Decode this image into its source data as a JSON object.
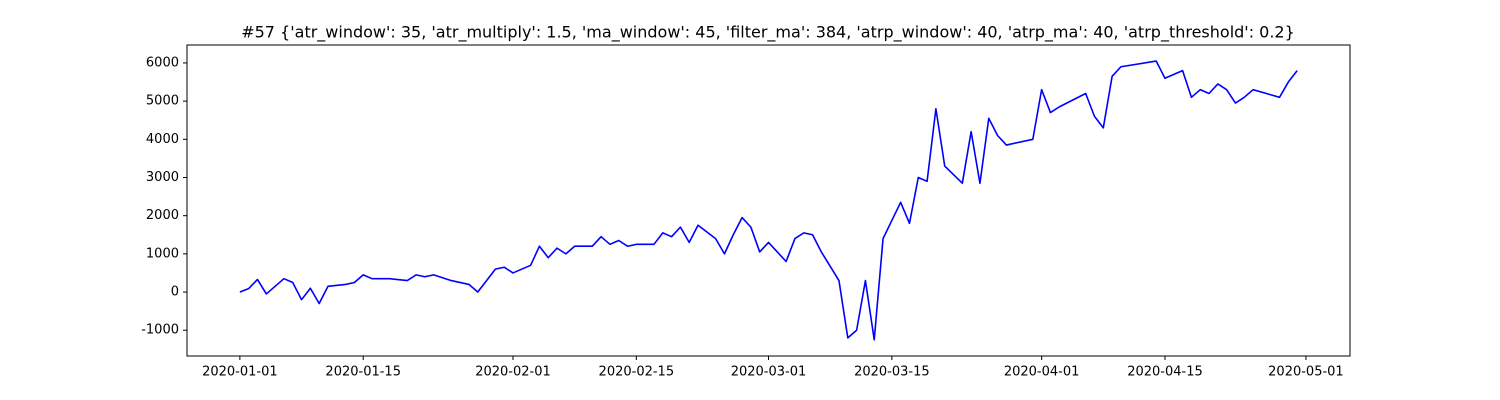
{
  "chart_data": {
    "type": "line",
    "title": "#57 {'atr_window': 35, 'atr_multiply': 1.5, 'ma_window': 45, 'filter_ma': 384, 'atrp_window': 40, 'atrp_ma': 40, 'atrp_threshold': 0.2}",
    "color": "#0000ff",
    "x": [
      "2020-01-01",
      "2020-01-02",
      "2020-01-03",
      "2020-01-04",
      "2020-01-05",
      "2020-01-06",
      "2020-01-07",
      "2020-01-08",
      "2020-01-09",
      "2020-01-10",
      "2020-01-11",
      "2020-01-13",
      "2020-01-14",
      "2020-01-15",
      "2020-01-16",
      "2020-01-18",
      "2020-01-20",
      "2020-01-21",
      "2020-01-22",
      "2020-01-23",
      "2020-01-25",
      "2020-01-27",
      "2020-01-28",
      "2020-01-29",
      "2020-01-30",
      "2020-01-31",
      "2020-02-01",
      "2020-02-03",
      "2020-02-04",
      "2020-02-05",
      "2020-02-06",
      "2020-02-07",
      "2020-02-08",
      "2020-02-10",
      "2020-02-11",
      "2020-02-12",
      "2020-02-13",
      "2020-02-14",
      "2020-02-15",
      "2020-02-17",
      "2020-02-18",
      "2020-02-19",
      "2020-02-20",
      "2020-02-21",
      "2020-02-22",
      "2020-02-24",
      "2020-02-25",
      "2020-02-26",
      "2020-02-27",
      "2020-02-28",
      "2020-02-29",
      "2020-03-01",
      "2020-03-03",
      "2020-03-04",
      "2020-03-05",
      "2020-03-06",
      "2020-03-07",
      "2020-03-09",
      "2020-03-10",
      "2020-03-11",
      "2020-03-12",
      "2020-03-13",
      "2020-03-14",
      "2020-03-16",
      "2020-03-17",
      "2020-03-18",
      "2020-03-19",
      "2020-03-20",
      "2020-03-21",
      "2020-03-23",
      "2020-03-24",
      "2020-03-25",
      "2020-03-26",
      "2020-03-27",
      "2020-03-28",
      "2020-03-31",
      "2020-04-01",
      "2020-04-02",
      "2020-04-03",
      "2020-04-06",
      "2020-04-07",
      "2020-04-08",
      "2020-04-09",
      "2020-04-10",
      "2020-04-14",
      "2020-04-15",
      "2020-04-16",
      "2020-04-17",
      "2020-04-18",
      "2020-04-19",
      "2020-04-20",
      "2020-04-21",
      "2020-04-22",
      "2020-04-23",
      "2020-04-24",
      "2020-04-25",
      "2020-04-28",
      "2020-04-29",
      "2020-04-30"
    ],
    "values": [
      0,
      90,
      330,
      -50,
      150,
      350,
      250,
      -200,
      100,
      -300,
      150,
      200,
      250,
      450,
      350,
      350,
      300,
      450,
      400,
      450,
      300,
      200,
      0,
      300,
      600,
      650,
      500,
      700,
      1200,
      900,
      1150,
      1000,
      1200,
      1200,
      1450,
      1250,
      1350,
      1200,
      1250,
      1250,
      1550,
      1450,
      1700,
      1300,
      1750,
      1400,
      1000,
      1500,
      1950,
      1700,
      1050,
      1300,
      800,
      1400,
      1550,
      1500,
      1050,
      300,
      -1200,
      -1000,
      300,
      -1250,
      1400,
      2350,
      1800,
      3000,
      2900,
      4800,
      3300,
      2850,
      4200,
      2850,
      4550,
      4100,
      3850,
      4000,
      5300,
      4700,
      4850,
      5200,
      4600,
      4300,
      5650,
      5900,
      6050,
      5600,
      5700,
      5800,
      5100,
      5300,
      5200,
      5450,
      5300,
      4950,
      5100,
      5300,
      5100,
      5500,
      5800
    ],
    "xlim": [
      "2019-12-26",
      "2020-05-06"
    ],
    "xticks": [
      "2020-01-01",
      "2020-01-15",
      "2020-02-01",
      "2020-02-15",
      "2020-03-01",
      "2020-03-15",
      "2020-04-01",
      "2020-04-15",
      "2020-05-01"
    ],
    "ylim": [
      -1675,
      6470
    ],
    "yticks": [
      -1000,
      0,
      1000,
      2000,
      3000,
      4000,
      5000,
      6000
    ],
    "grid": false
  }
}
